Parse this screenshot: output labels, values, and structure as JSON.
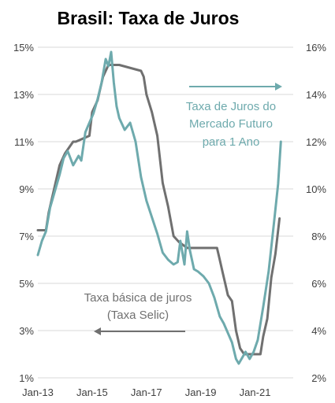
{
  "chart_data": {
    "type": "line",
    "title": "Brasil: Taxa de Juros",
    "x_tick_labels": [
      "Jan-13",
      "Jan-15",
      "Jan-17",
      "Jan-19",
      "Jan-21"
    ],
    "x_ticks": [
      2013.0,
      2015.0,
      2017.0,
      2019.0,
      2021.0
    ],
    "x_range": [
      2013.0,
      2022.0
    ],
    "grid": "horizontal",
    "left_axis": {
      "ylim": [
        1,
        15
      ],
      "ticks": [
        1,
        3,
        5,
        7,
        9,
        11,
        13,
        15
      ],
      "tick_labels": [
        "1%",
        "3%",
        "5%",
        "7%",
        "9%",
        "11%",
        "13%",
        "15%"
      ]
    },
    "right_axis": {
      "ylim": [
        2,
        16
      ],
      "ticks": [
        2,
        4,
        6,
        8,
        10,
        12,
        14,
        16
      ],
      "tick_labels": [
        "2%",
        "4%",
        "6%",
        "8%",
        "10%",
        "12%",
        "14%",
        "16%"
      ]
    },
    "series": [
      {
        "name_lines": [
          "Taxa básica de juros",
          "(Taxa Selic)"
        ],
        "axis": "left",
        "color": "#707070",
        "x": [
          2013.0,
          2013.3,
          2013.4,
          2013.6,
          2013.8,
          2014.0,
          2014.3,
          2014.4,
          2014.9,
          2015.0,
          2015.2,
          2015.4,
          2015.6,
          2016.0,
          2016.8,
          2016.9,
          2017.0,
          2017.2,
          2017.4,
          2017.6,
          2017.8,
          2018.0,
          2018.2,
          2018.5,
          2019.6,
          2019.7,
          2019.8,
          2019.9,
          2020.0,
          2020.15,
          2020.3,
          2020.45,
          2020.6,
          2021.2,
          2021.3,
          2021.45,
          2021.6,
          2021.75,
          2021.9
        ],
        "y": [
          7.25,
          7.25,
          8.0,
          9.0,
          10.0,
          10.5,
          11.0,
          11.0,
          11.25,
          12.25,
          12.75,
          13.75,
          14.25,
          14.25,
          14.0,
          13.75,
          13.0,
          12.25,
          11.25,
          9.25,
          8.25,
          7.0,
          6.75,
          6.5,
          6.5,
          6.0,
          5.5,
          5.0,
          4.5,
          4.25,
          3.0,
          2.25,
          2.0,
          2.0,
          2.75,
          3.5,
          5.25,
          6.25,
          7.75
        ]
      },
      {
        "name_lines": [
          "Taxa de Juros do",
          "Mercado Futuro",
          "para 1 Ano"
        ],
        "axis": "right",
        "color": "#6eaaad",
        "x": [
          2013.0,
          2013.15,
          2013.3,
          2013.45,
          2013.6,
          2013.8,
          2013.95,
          2014.1,
          2014.3,
          2014.5,
          2014.6,
          2014.75,
          2014.9,
          2015.05,
          2015.2,
          2015.35,
          2015.5,
          2015.6,
          2015.7,
          2015.8,
          2015.9,
          2016.0,
          2016.2,
          2016.4,
          2016.6,
          2016.8,
          2017.0,
          2017.2,
          2017.4,
          2017.6,
          2017.8,
          2018.0,
          2018.15,
          2018.25,
          2018.4,
          2018.5,
          2018.6,
          2018.75,
          2018.9,
          2019.1,
          2019.3,
          2019.5,
          2019.7,
          2019.85,
          2020.0,
          2020.15,
          2020.3,
          2020.4,
          2020.55,
          2020.65,
          2020.8,
          2020.95,
          2021.1,
          2021.3,
          2021.5,
          2021.7,
          2021.85,
          2021.95
        ],
        "y": [
          7.2,
          7.8,
          8.2,
          9.2,
          9.8,
          10.6,
          11.3,
          11.6,
          11.0,
          11.4,
          11.2,
          12.4,
          12.8,
          13.2,
          13.8,
          14.5,
          15.5,
          15.2,
          15.8,
          14.5,
          13.5,
          13.0,
          12.5,
          12.8,
          12.0,
          10.5,
          9.5,
          8.8,
          8.1,
          7.3,
          7.0,
          6.8,
          6.9,
          7.8,
          6.8,
          8.2,
          7.4,
          6.6,
          6.5,
          6.3,
          6.0,
          5.4,
          4.6,
          4.3,
          3.9,
          3.5,
          2.8,
          2.6,
          2.9,
          3.1,
          2.8,
          3.1,
          3.6,
          5.0,
          6.5,
          8.6,
          10.2,
          12.0
        ]
      }
    ],
    "annotations": [
      {
        "series": 1,
        "arrow": "right"
      },
      {
        "series": 0,
        "arrow": "left"
      }
    ]
  }
}
